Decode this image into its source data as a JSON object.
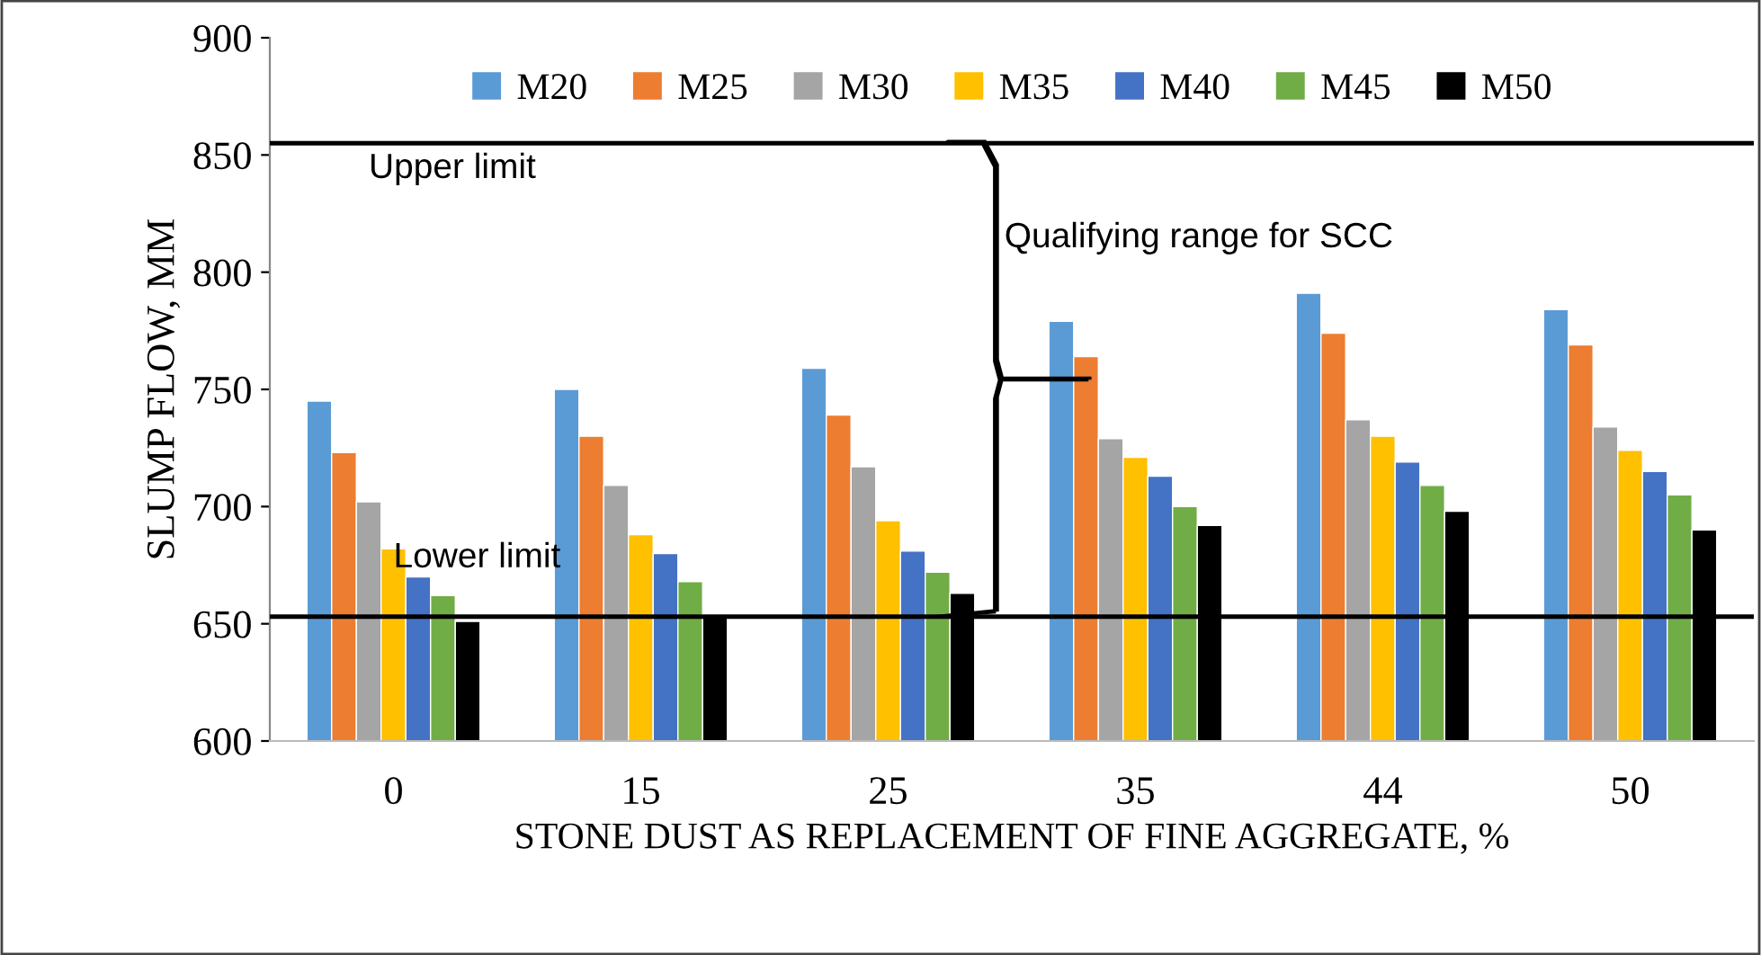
{
  "chart_data": {
    "type": "bar",
    "ylabel": "SLUMP FLOW, MM",
    "xlabel": "STONE DUST AS REPLACEMENT OF FINE AGGREGATE, %",
    "categories": [
      "0",
      "15",
      "25",
      "35",
      "44",
      "50"
    ],
    "series": [
      {
        "name": "M20",
        "color": "#5b9bd5",
        "values": [
          745,
          750,
          759,
          779,
          791,
          784
        ]
      },
      {
        "name": "M25",
        "color": "#ed7d31",
        "values": [
          723,
          730,
          739,
          764,
          774,
          769
        ]
      },
      {
        "name": "M30",
        "color": "#a5a5a5",
        "values": [
          702,
          709,
          717,
          729,
          737,
          734
        ]
      },
      {
        "name": "M35",
        "color": "#ffc000",
        "values": [
          682,
          688,
          694,
          721,
          730,
          724
        ]
      },
      {
        "name": "M40",
        "color": "#4472c4",
        "values": [
          670,
          680,
          681,
          713,
          719,
          715
        ]
      },
      {
        "name": "M45",
        "color": "#70ad47",
        "values": [
          662,
          668,
          672,
          700,
          709,
          705
        ]
      },
      {
        "name": "M50",
        "color": "#000000",
        "values": [
          651,
          654,
          663,
          692,
          698,
          690
        ]
      }
    ],
    "ylim": [
      600,
      900
    ],
    "yticks": [
      600,
      650,
      700,
      750,
      800,
      850,
      900
    ],
    "ref_lines": [
      {
        "axis": "y",
        "value": 855,
        "label": "Upper limit",
        "color": "#000000"
      },
      {
        "axis": "y",
        "value": 653,
        "label": "Lower limit",
        "color": "#000000"
      }
    ],
    "annotations": [
      "Qualifying range for SCC"
    ],
    "legend": "top",
    "grid": false
  }
}
